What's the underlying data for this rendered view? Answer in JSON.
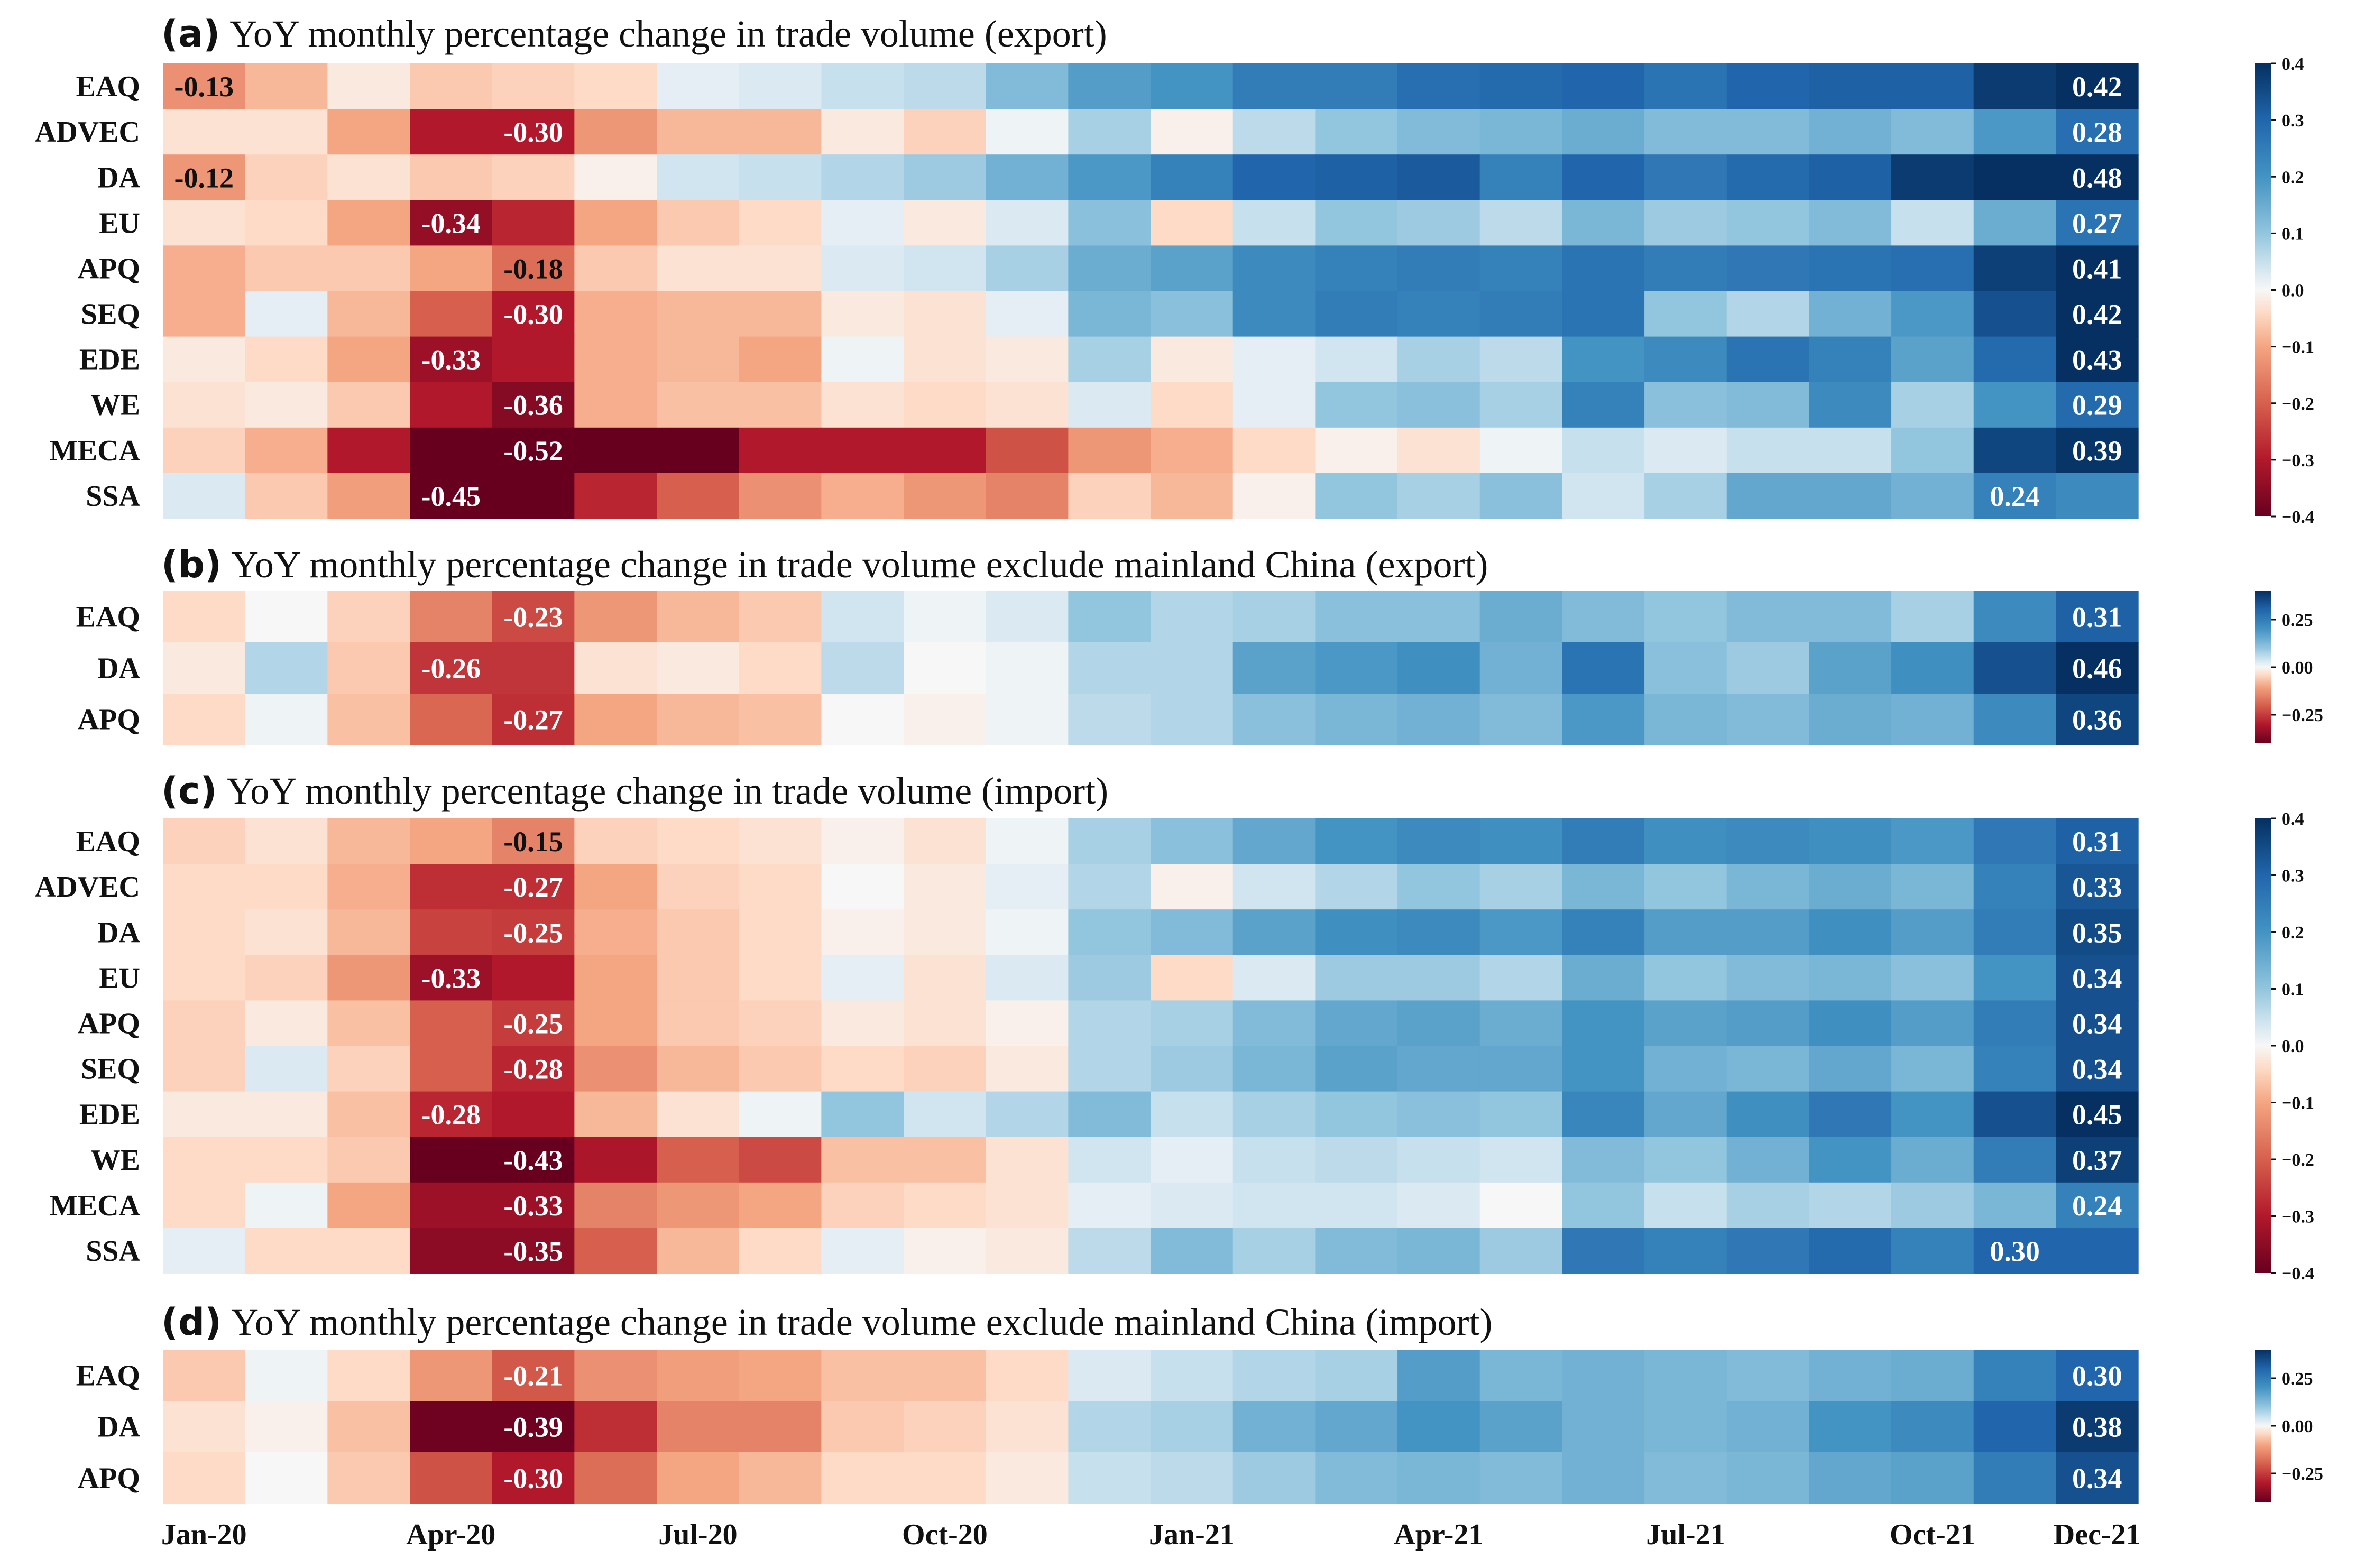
{
  "chart_data": [
    {
      "type": "heatmap",
      "panel_letter": "(a)",
      "title": "YoY monthly percentage change in trade volume (export)",
      "categories": [
        "Jan-20",
        "Feb-20",
        "Mar-20",
        "Apr-20",
        "May-20",
        "Jun-20",
        "Jul-20",
        "Aug-20",
        "Sep-20",
        "Oct-20",
        "Nov-20",
        "Dec-20",
        "Jan-21",
        "Feb-21",
        "Mar-21",
        "Apr-21",
        "May-21",
        "Jun-21",
        "Jul-21",
        "Aug-21",
        "Sep-21",
        "Oct-21",
        "Nov-21",
        "Dec-21"
      ],
      "rows": [
        "EAQ",
        "ADVEC",
        "DA",
        "EU",
        "APQ",
        "SEQ",
        "EDE",
        "WE",
        "MECA",
        "SSA"
      ],
      "values": [
        [
          -0.13,
          -0.08,
          -0.02,
          -0.06,
          -0.05,
          -0.04,
          0.02,
          0.03,
          0.05,
          0.06,
          0.12,
          0.18,
          0.2,
          0.25,
          0.25,
          0.28,
          0.29,
          0.3,
          0.27,
          0.3,
          0.31,
          0.31,
          0.38,
          0.42
        ],
        [
          -0.03,
          -0.03,
          -0.1,
          -0.3,
          -0.3,
          -0.12,
          -0.08,
          -0.08,
          -0.02,
          -0.05,
          0.01,
          0.08,
          -0.01,
          0.06,
          0.1,
          0.12,
          0.13,
          0.15,
          0.12,
          0.12,
          0.14,
          0.12,
          0.19,
          0.28
        ],
        [
          -0.12,
          -0.05,
          -0.03,
          -0.06,
          -0.05,
          -0.01,
          0.04,
          0.05,
          0.07,
          0.09,
          0.14,
          0.19,
          0.24,
          0.3,
          0.31,
          0.32,
          0.24,
          0.3,
          0.26,
          0.29,
          0.31,
          0.38,
          0.44,
          0.48
        ],
        [
          -0.03,
          -0.04,
          -0.1,
          -0.34,
          -0.28,
          -0.1,
          -0.06,
          -0.04,
          0.02,
          -0.02,
          0.03,
          0.11,
          -0.04,
          0.05,
          0.1,
          0.09,
          0.06,
          0.13,
          0.09,
          0.1,
          0.12,
          0.05,
          0.15,
          0.27
        ],
        [
          -0.09,
          -0.06,
          -0.06,
          -0.1,
          -0.18,
          -0.06,
          -0.03,
          -0.03,
          0.03,
          0.04,
          0.08,
          0.15,
          0.17,
          0.22,
          0.24,
          0.25,
          0.24,
          0.27,
          0.25,
          0.26,
          0.27,
          0.28,
          0.37,
          0.41
        ],
        [
          -0.09,
          0.02,
          -0.08,
          -0.2,
          -0.3,
          -0.09,
          -0.08,
          -0.08,
          -0.02,
          -0.03,
          0.02,
          0.13,
          0.11,
          0.22,
          0.25,
          0.24,
          0.25,
          0.27,
          0.1,
          0.07,
          0.14,
          0.19,
          0.34,
          0.42
        ],
        [
          -0.02,
          -0.04,
          -0.1,
          -0.33,
          -0.3,
          -0.09,
          -0.08,
          -0.1,
          0.01,
          -0.03,
          -0.02,
          0.08,
          -0.02,
          0.02,
          0.04,
          0.08,
          0.06,
          0.2,
          0.22,
          0.27,
          0.24,
          0.17,
          0.29,
          0.43
        ],
        [
          -0.03,
          -0.02,
          -0.06,
          -0.3,
          -0.36,
          -0.09,
          -0.07,
          -0.07,
          -0.03,
          -0.04,
          -0.03,
          0.03,
          -0.04,
          0.02,
          0.1,
          0.11,
          0.08,
          0.24,
          0.11,
          0.12,
          0.22,
          0.08,
          0.2,
          0.29
        ],
        [
          -0.05,
          -0.09,
          -0.3,
          -0.48,
          -0.52,
          -0.5,
          -0.44,
          -0.3,
          -0.3,
          -0.3,
          -0.22,
          -0.12,
          -0.09,
          -0.04,
          -0.01,
          -0.03,
          0.01,
          0.05,
          0.03,
          0.05,
          0.05,
          0.1,
          0.36,
          0.39
        ],
        [
          0.03,
          -0.06,
          -0.11,
          -0.45,
          -0.48,
          -0.28,
          -0.2,
          -0.13,
          -0.09,
          -0.12,
          -0.15,
          -0.05,
          -0.08,
          -0.01,
          0.1,
          0.08,
          0.11,
          0.04,
          0.08,
          0.16,
          0.16,
          0.14,
          0.24,
          0.22
        ]
      ],
      "annotations": [
        {
          "row": 0,
          "col": 0,
          "text": "-0.13"
        },
        {
          "row": 1,
          "col": 4,
          "text": "-0.30"
        },
        {
          "row": 2,
          "col": 0,
          "text": "-0.12"
        },
        {
          "row": 3,
          "col": 3,
          "text": "-0.34"
        },
        {
          "row": 4,
          "col": 4,
          "text": "-0.18"
        },
        {
          "row": 5,
          "col": 4,
          "text": "-0.30"
        },
        {
          "row": 6,
          "col": 3,
          "text": "-0.33"
        },
        {
          "row": 7,
          "col": 4,
          "text": "-0.36"
        },
        {
          "row": 8,
          "col": 4,
          "text": "-0.52"
        },
        {
          "row": 9,
          "col": 3,
          "text": "-0.45"
        },
        {
          "row": 0,
          "col": 23,
          "text": "0.42"
        },
        {
          "row": 1,
          "col": 23,
          "text": "0.28"
        },
        {
          "row": 2,
          "col": 23,
          "text": "0.48"
        },
        {
          "row": 3,
          "col": 23,
          "text": "0.27"
        },
        {
          "row": 4,
          "col": 23,
          "text": "0.41"
        },
        {
          "row": 5,
          "col": 23,
          "text": "0.42"
        },
        {
          "row": 6,
          "col": 23,
          "text": "0.43"
        },
        {
          "row": 7,
          "col": 23,
          "text": "0.29"
        },
        {
          "row": 8,
          "col": 23,
          "text": "0.39"
        },
        {
          "row": 9,
          "col": 22,
          "text": "0.24"
        }
      ],
      "vmin": -0.4,
      "vmax": 0.4,
      "colorbar_ticks": [
        0.4,
        0.3,
        0.2,
        0.1,
        0.0,
        -0.1,
        -0.2,
        -0.3,
        -0.4
      ],
      "colorbar_labels": [
        "0.4",
        "0.3",
        "0.2",
        "0.1",
        "0.0",
        "−0.1",
        "−0.2",
        "−0.3",
        "−0.4"
      ]
    },
    {
      "type": "heatmap",
      "panel_letter": "(b)",
      "title": "YoY monthly percentage change in trade volume exclude mainland China (export)",
      "categories": [
        "Jan-20",
        "Feb-20",
        "Mar-20",
        "Apr-20",
        "May-20",
        "Jun-20",
        "Jul-20",
        "Aug-20",
        "Sep-20",
        "Oct-20",
        "Nov-20",
        "Dec-20",
        "Jan-21",
        "Feb-21",
        "Mar-21",
        "Apr-21",
        "May-21",
        "Jun-21",
        "Jul-21",
        "Aug-21",
        "Sep-21",
        "Oct-21",
        "Nov-21",
        "Dec-21"
      ],
      "rows": [
        "EAQ",
        "DA",
        "APQ"
      ],
      "values": [
        [
          -0.04,
          0.0,
          -0.05,
          -0.15,
          -0.23,
          -0.12,
          -0.08,
          -0.06,
          0.04,
          0.01,
          0.03,
          0.1,
          0.07,
          0.08,
          0.11,
          0.11,
          0.15,
          0.12,
          0.1,
          0.12,
          0.12,
          0.08,
          0.22,
          0.31
        ],
        [
          -0.02,
          0.07,
          -0.06,
          -0.26,
          -0.26,
          -0.03,
          -0.02,
          -0.04,
          0.06,
          0.0,
          0.01,
          0.07,
          0.07,
          0.17,
          0.19,
          0.21,
          0.14,
          0.27,
          0.11,
          0.09,
          0.17,
          0.21,
          0.34,
          0.46
        ],
        [
          -0.04,
          0.01,
          -0.07,
          -0.19,
          -0.27,
          -0.1,
          -0.08,
          -0.07,
          0.0,
          -0.01,
          0.01,
          0.06,
          0.07,
          0.11,
          0.13,
          0.14,
          0.12,
          0.19,
          0.13,
          0.12,
          0.15,
          0.14,
          0.22,
          0.36
        ]
      ],
      "annotations": [
        {
          "row": 0,
          "col": 4,
          "text": "-0.23"
        },
        {
          "row": 1,
          "col": 3,
          "text": "-0.26"
        },
        {
          "row": 2,
          "col": 4,
          "text": "-0.27"
        },
        {
          "row": 0,
          "col": 23,
          "text": "0.31"
        },
        {
          "row": 1,
          "col": 23,
          "text": "0.46"
        },
        {
          "row": 2,
          "col": 23,
          "text": "0.36"
        }
      ],
      "vmin": -0.4,
      "vmax": 0.4,
      "colorbar_ticks": [
        0.25,
        0.0,
        -0.25
      ],
      "colorbar_labels": [
        "0.25",
        "0.00",
        "−0.25"
      ]
    },
    {
      "type": "heatmap",
      "panel_letter": "(c)",
      "title": "YoY monthly percentage change in trade volume (import)",
      "categories": [
        "Jan-20",
        "Feb-20",
        "Mar-20",
        "Apr-20",
        "May-20",
        "Jun-20",
        "Jul-20",
        "Aug-20",
        "Sep-20",
        "Oct-20",
        "Nov-20",
        "Dec-20",
        "Jan-21",
        "Feb-21",
        "Mar-21",
        "Apr-21",
        "May-21",
        "Jun-21",
        "Jul-21",
        "Aug-21",
        "Sep-21",
        "Oct-21",
        "Nov-21",
        "Dec-21"
      ],
      "rows": [
        "EAQ",
        "ADVEC",
        "DA",
        "EU",
        "APQ",
        "SEQ",
        "EDE",
        "WE",
        "MECA",
        "SSA"
      ],
      "values": [
        [
          -0.05,
          -0.03,
          -0.08,
          -0.1,
          -0.15,
          -0.05,
          -0.04,
          -0.03,
          -0.01,
          -0.03,
          0.01,
          0.08,
          0.11,
          0.16,
          0.2,
          0.22,
          0.21,
          0.25,
          0.21,
          0.22,
          0.21,
          0.19,
          0.26,
          0.31
        ],
        [
          -0.04,
          -0.04,
          -0.09,
          -0.27,
          -0.27,
          -0.1,
          -0.05,
          -0.04,
          0.0,
          -0.02,
          0.02,
          0.07,
          -0.01,
          0.04,
          0.07,
          0.1,
          0.08,
          0.13,
          0.1,
          0.13,
          0.15,
          0.13,
          0.24,
          0.33
        ],
        [
          -0.04,
          -0.03,
          -0.08,
          -0.24,
          -0.25,
          -0.09,
          -0.06,
          -0.04,
          -0.01,
          -0.02,
          0.01,
          0.1,
          0.12,
          0.17,
          0.21,
          0.22,
          0.19,
          0.24,
          0.18,
          0.18,
          0.21,
          0.18,
          0.25,
          0.35
        ],
        [
          -0.04,
          -0.05,
          -0.12,
          -0.33,
          -0.3,
          -0.1,
          -0.06,
          -0.04,
          0.02,
          -0.03,
          0.03,
          0.09,
          -0.04,
          0.03,
          0.09,
          0.09,
          0.07,
          0.15,
          0.1,
          0.12,
          0.13,
          0.11,
          0.2,
          0.34
        ],
        [
          -0.05,
          -0.02,
          -0.07,
          -0.2,
          -0.25,
          -0.1,
          -0.06,
          -0.05,
          -0.02,
          -0.03,
          -0.01,
          0.07,
          0.08,
          0.12,
          0.16,
          0.17,
          0.15,
          0.2,
          0.17,
          0.18,
          0.21,
          0.18,
          0.25,
          0.34
        ],
        [
          -0.05,
          0.03,
          -0.05,
          -0.2,
          -0.28,
          -0.13,
          -0.08,
          -0.06,
          -0.04,
          -0.05,
          -0.02,
          0.07,
          0.09,
          0.13,
          0.17,
          0.16,
          0.16,
          0.2,
          0.14,
          0.13,
          0.16,
          0.13,
          0.24,
          0.34
        ],
        [
          -0.02,
          -0.02,
          -0.07,
          -0.28,
          -0.3,
          -0.08,
          -0.03,
          0.01,
          0.1,
          0.04,
          0.07,
          0.12,
          0.05,
          0.08,
          0.1,
          0.11,
          0.1,
          0.23,
          0.16,
          0.21,
          0.26,
          0.2,
          0.34,
          0.45
        ],
        [
          -0.04,
          -0.04,
          -0.06,
          -0.43,
          -0.43,
          -0.31,
          -0.2,
          -0.23,
          -0.07,
          -0.07,
          -0.03,
          0.04,
          0.02,
          0.05,
          0.06,
          0.05,
          0.04,
          0.12,
          0.1,
          0.14,
          0.2,
          0.15,
          0.25,
          0.37
        ],
        [
          -0.04,
          0.01,
          -0.1,
          -0.33,
          -0.33,
          -0.15,
          -0.12,
          -0.1,
          -0.05,
          -0.04,
          -0.03,
          0.02,
          0.03,
          0.04,
          0.04,
          0.03,
          0.0,
          0.1,
          0.05,
          0.08,
          0.07,
          0.09,
          0.13,
          0.24
        ],
        [
          0.02,
          -0.04,
          -0.04,
          -0.35,
          -0.35,
          -0.2,
          -0.08,
          -0.04,
          0.02,
          -0.01,
          -0.02,
          0.06,
          0.12,
          0.08,
          0.12,
          0.13,
          0.09,
          0.26,
          0.24,
          0.26,
          0.29,
          0.24,
          0.3,
          0.3
        ]
      ],
      "annotations": [
        {
          "row": 0,
          "col": 4,
          "text": "-0.15"
        },
        {
          "row": 1,
          "col": 4,
          "text": "-0.27"
        },
        {
          "row": 2,
          "col": 4,
          "text": "-0.25"
        },
        {
          "row": 3,
          "col": 3,
          "text": "-0.33"
        },
        {
          "row": 4,
          "col": 4,
          "text": "-0.25"
        },
        {
          "row": 5,
          "col": 4,
          "text": "-0.28"
        },
        {
          "row": 6,
          "col": 3,
          "text": "-0.28"
        },
        {
          "row": 7,
          "col": 4,
          "text": "-0.43"
        },
        {
          "row": 8,
          "col": 4,
          "text": "-0.33"
        },
        {
          "row": 9,
          "col": 4,
          "text": "-0.35"
        },
        {
          "row": 0,
          "col": 23,
          "text": "0.31"
        },
        {
          "row": 1,
          "col": 23,
          "text": "0.33"
        },
        {
          "row": 2,
          "col": 23,
          "text": "0.35"
        },
        {
          "row": 3,
          "col": 23,
          "text": "0.34"
        },
        {
          "row": 4,
          "col": 23,
          "text": "0.34"
        },
        {
          "row": 5,
          "col": 23,
          "text": "0.34"
        },
        {
          "row": 6,
          "col": 23,
          "text": "0.45"
        },
        {
          "row": 7,
          "col": 23,
          "text": "0.37"
        },
        {
          "row": 8,
          "col": 23,
          "text": "0.24"
        },
        {
          "row": 9,
          "col": 22,
          "text": "0.30"
        }
      ],
      "vmin": -0.4,
      "vmax": 0.4,
      "colorbar_ticks": [
        0.4,
        0.3,
        0.2,
        0.1,
        0.0,
        -0.1,
        -0.2,
        -0.3,
        -0.4
      ],
      "colorbar_labels": [
        "0.4",
        "0.3",
        "0.2",
        "0.1",
        "0.0",
        "−0.1",
        "−0.2",
        "−0.3",
        "−0.4"
      ]
    },
    {
      "type": "heatmap",
      "panel_letter": "(d)",
      "title": "YoY monthly percentage change in trade volume exclude mainland China (import)",
      "categories": [
        "Jan-20",
        "Feb-20",
        "Mar-20",
        "Apr-20",
        "May-20",
        "Jun-20",
        "Jul-20",
        "Aug-20",
        "Sep-20",
        "Oct-20",
        "Nov-20",
        "Dec-20",
        "Jan-21",
        "Feb-21",
        "Mar-21",
        "Apr-21",
        "May-21",
        "Jun-21",
        "Jul-21",
        "Aug-21",
        "Sep-21",
        "Oct-21",
        "Nov-21",
        "Dec-21"
      ],
      "rows": [
        "EAQ",
        "DA",
        "APQ"
      ],
      "values": [
        [
          -0.06,
          0.01,
          -0.04,
          -0.12,
          -0.21,
          -0.13,
          -0.11,
          -0.1,
          -0.07,
          -0.07,
          -0.04,
          0.03,
          0.05,
          0.07,
          0.08,
          0.18,
          0.13,
          0.14,
          0.13,
          0.12,
          0.14,
          0.15,
          0.24,
          0.3
        ],
        [
          -0.03,
          -0.01,
          -0.07,
          -0.39,
          -0.39,
          -0.27,
          -0.15,
          -0.15,
          -0.06,
          -0.05,
          -0.03,
          0.07,
          0.08,
          0.14,
          0.16,
          0.2,
          0.17,
          0.14,
          0.13,
          0.14,
          0.2,
          0.22,
          0.3,
          0.38
        ],
        [
          -0.04,
          0.0,
          -0.06,
          -0.22,
          -0.3,
          -0.18,
          -0.1,
          -0.08,
          -0.04,
          -0.04,
          -0.02,
          0.05,
          0.06,
          0.09,
          0.12,
          0.13,
          0.12,
          0.14,
          0.12,
          0.13,
          0.16,
          0.17,
          0.25,
          0.34
        ]
      ],
      "annotations": [
        {
          "row": 0,
          "col": 4,
          "text": "-0.21"
        },
        {
          "row": 1,
          "col": 4,
          "text": "-0.39"
        },
        {
          "row": 2,
          "col": 4,
          "text": "-0.30"
        },
        {
          "row": 0,
          "col": 23,
          "text": "0.30"
        },
        {
          "row": 1,
          "col": 23,
          "text": "0.38"
        },
        {
          "row": 2,
          "col": 23,
          "text": "0.34"
        }
      ],
      "vmin": -0.4,
      "vmax": 0.4,
      "colorbar_ticks": [
        0.25,
        0.0,
        -0.25
      ],
      "colorbar_labels": [
        "0.25",
        "0.00",
        "−0.25"
      ]
    }
  ],
  "x_axis": {
    "tick_labels": [
      "Jan-20",
      "Apr-20",
      "Jul-20",
      "Oct-20",
      "Jan-21",
      "Apr-21",
      "Jul-21",
      "Oct-21",
      "Dec-21"
    ],
    "tick_months": [
      0,
      3,
      6,
      9,
      12,
      15,
      18,
      21,
      23
    ]
  },
  "colormap": "RdBu"
}
